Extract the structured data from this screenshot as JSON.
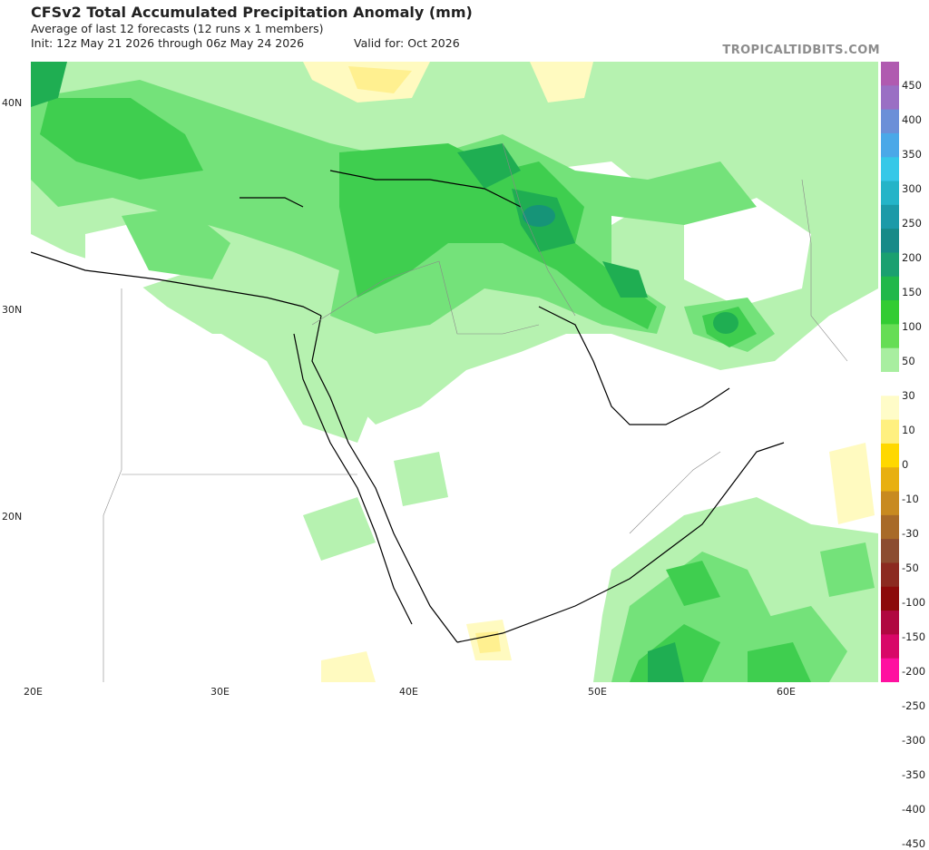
{
  "header": {
    "title": "CFSv2 Total Accumulated Precipitation Anomaly (mm)",
    "subtitle": "Average of last 12 forecasts (12 runs x 1 members)",
    "init": "Init: 12z May 21 2026 through 06z May 24 2026",
    "valid": "Valid for: Oct 2026"
  },
  "brand": "TROPICALTIDBITS.COM",
  "axes": {
    "lat_labels": [
      "40N",
      "30N",
      "20N"
    ],
    "lon_labels": [
      "20E",
      "30E",
      "40E",
      "50E",
      "60E"
    ]
  },
  "colorbar": {
    "labels": [
      "450",
      "400",
      "350",
      "300",
      "250",
      "200",
      "150",
      "100",
      "50",
      "30",
      "10",
      "0",
      "-10",
      "-30",
      "-50",
      "-100",
      "-150",
      "-200",
      "-250",
      "-300",
      "-350",
      "-400",
      "-450"
    ],
    "colors": [
      "#b05ab0",
      "#9a6fc4",
      "#6b8fd8",
      "#4aa8e8",
      "#36c8e8",
      "#24b4c8",
      "#1c9aa8",
      "#178a88",
      "#1aa070",
      "#20b84a",
      "#33cc33",
      "#66dd55",
      "#a8eea0",
      "#ffffff",
      "#fffcc8",
      "#fff080",
      "#ffd800",
      "#e8b010",
      "#c88a20",
      "#a86a28",
      "#8c4c30",
      "#8c2a20",
      "#8c0a0a",
      "#b00840",
      "#d80868",
      "#ff10a0"
    ]
  },
  "map_colors": {
    "light_green": "#b6f2b0",
    "mid_green": "#74e27a",
    "green": "#3fce4f",
    "dark_green": "#1fae52",
    "teal": "#169478",
    "light_yellow": "#fffac0",
    "yellow": "#fff090"
  }
}
